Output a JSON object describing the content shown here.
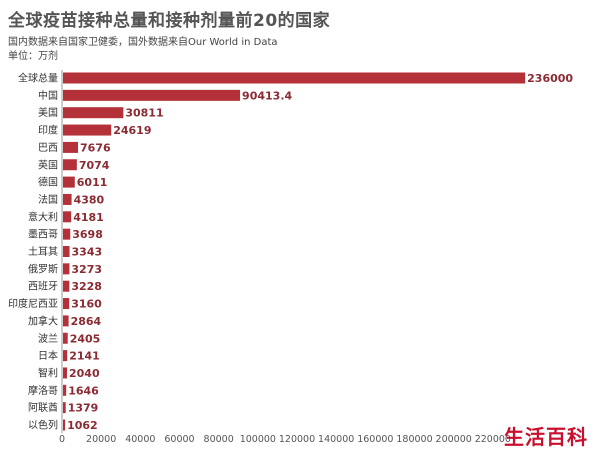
{
  "title": "全球疫苗接种总量和接种剂量前20的国家",
  "subtitle": "国内数据来自国家卫健委，国外数据来自Our World in Data",
  "unit": "单位：万剂",
  "watermark": "生活百科",
  "colors": {
    "bar": "#b5313a",
    "value_text": "#8b2b33"
  },
  "chart_data": {
    "type": "bar",
    "orientation": "horizontal",
    "categories": [
      "全球总量",
      "中国",
      "美国",
      "印度",
      "巴西",
      "英国",
      "德国",
      "法国",
      "意大利",
      "墨西哥",
      "土耳其",
      "俄罗斯",
      "西班牙",
      "印度尼西亚",
      "加拿大",
      "波兰",
      "日本",
      "智利",
      "摩洛哥",
      "阿联酋",
      "以色列"
    ],
    "values": [
      236000,
      90413.4,
      30811,
      24619,
      7676,
      7074,
      6011,
      4380,
      4181,
      3698,
      3343,
      3273,
      3228,
      3160,
      2864,
      2405,
      2141,
      2040,
      1646,
      1379,
      1062
    ],
    "value_labels": [
      "236000",
      "90413.4",
      "30811",
      "24619",
      "7676",
      "7074",
      "6011",
      "4380",
      "4181",
      "3698",
      "3343",
      "3273",
      "3228",
      "3160",
      "2864",
      "2405",
      "2141",
      "2040",
      "1646",
      "1379",
      "1062"
    ],
    "xlim": [
      0,
      240000
    ],
    "xticks": [
      0,
      20000,
      40000,
      60000,
      80000,
      100000,
      120000,
      140000,
      160000,
      180000,
      200000,
      220000
    ],
    "title": "全球疫苗接种总量和接种剂量前20的国家",
    "xlabel": "",
    "ylabel": "",
    "grid": false,
    "legend": "none"
  }
}
